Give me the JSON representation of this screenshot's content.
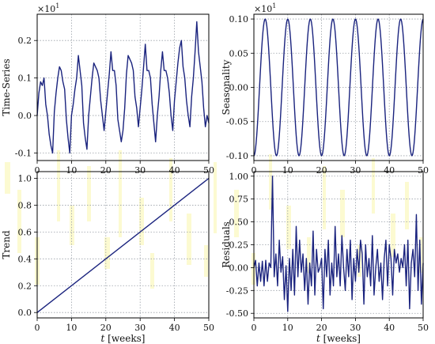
{
  "figure": {
    "series_color": "#1a237e",
    "grid_color": "#9aa0a8",
    "frame_color": "#000000",
    "decor_color": "#f5f07a"
  },
  "chart_data": [
    {
      "id": "timeseries",
      "type": "line",
      "ylabel": "Time-Series",
      "xlabel": "",
      "multiplier": "×10",
      "multiplier_exp": "1",
      "xlim": [
        0,
        50
      ],
      "ylim": [
        -0.12,
        0.27
      ],
      "xticks": [
        "0",
        "10",
        "20",
        "30",
        "40",
        "50"
      ],
      "yticks": [
        "-0.1",
        "0.0",
        "0.1",
        "0.2"
      ],
      "ytick_values": [
        -0.1,
        0.0,
        0.1,
        0.2
      ],
      "grid": true,
      "x": [
        0,
        0.5,
        1,
        1.5,
        2,
        2.5,
        3,
        3.5,
        4,
        4.5,
        5,
        5.5,
        6,
        6.5,
        7,
        7.5,
        8,
        8.5,
        9,
        9.5,
        10,
        10.5,
        11,
        11.5,
        12,
        12.5,
        13,
        13.5,
        14,
        14.5,
        15,
        15.5,
        16,
        16.5,
        17,
        17.5,
        18,
        18.5,
        19,
        19.5,
        20,
        20.5,
        21,
        21.5,
        22,
        22.5,
        23,
        23.5,
        24,
        24.5,
        25,
        25.5,
        26,
        26.5,
        27,
        27.5,
        28,
        28.5,
        29,
        29.5,
        30,
        30.5,
        31,
        31.5,
        32,
        32.5,
        33,
        33.5,
        34,
        34.5,
        35,
        35.5,
        36,
        36.5,
        37,
        37.5,
        38,
        38.5,
        39,
        39.5,
        40,
        40.5,
        41,
        41.5,
        42,
        42.5,
        43,
        43.5,
        44,
        44.5,
        45,
        45.5,
        46,
        46.5,
        47,
        47.5,
        48,
        48.5,
        49,
        49.5,
        50
      ],
      "values": [
        0.0,
        0.06,
        0.09,
        0.08,
        0.1,
        0.03,
        0.0,
        -0.05,
        -0.08,
        -0.1,
        0.01,
        0.06,
        0.1,
        0.13,
        0.12,
        0.09,
        0.07,
        -0.01,
        -0.06,
        -0.1,
        0.0,
        0.03,
        0.07,
        0.1,
        0.16,
        0.12,
        0.08,
        -0.02,
        -0.06,
        -0.09,
        0.0,
        0.05,
        0.1,
        0.14,
        0.13,
        0.12,
        0.1,
        0.04,
        0.0,
        -0.04,
        0.01,
        0.06,
        0.11,
        0.17,
        0.12,
        0.12,
        0.08,
        -0.01,
        -0.04,
        -0.07,
        -0.04,
        0.02,
        0.11,
        0.16,
        0.15,
        0.14,
        0.12,
        0.05,
        0.02,
        -0.03,
        0.02,
        0.07,
        0.13,
        0.19,
        0.12,
        0.12,
        0.1,
        0.03,
        -0.02,
        -0.07,
        0.0,
        0.05,
        0.12,
        0.17,
        0.12,
        0.12,
        0.1,
        0.06,
        0.0,
        -0.04,
        0.04,
        0.09,
        0.14,
        0.18,
        0.2,
        0.13,
        0.1,
        0.04,
        0.0,
        -0.03,
        0.05,
        0.1,
        0.17,
        0.25,
        0.17,
        0.13,
        0.09,
        0.02,
        -0.03,
        0.0,
        -0.02
      ]
    },
    {
      "id": "seasonality",
      "type": "line",
      "ylabel": "Seasonality",
      "xlabel": "",
      "multiplier": "×10",
      "multiplier_exp": "1",
      "xlim": [
        0,
        50
      ],
      "ylim": [
        -0.107,
        0.107
      ],
      "xticks": [
        "0",
        "10",
        "20",
        "30",
        "40",
        "50"
      ],
      "yticks": [
        "-0.10",
        "-0.05",
        "0.00",
        "0.05",
        "0.10"
      ],
      "ytick_values": [
        -0.1,
        -0.05,
        0.0,
        0.05,
        0.1
      ],
      "grid": true,
      "period_weeks": 6.67,
      "amplitude": 0.1,
      "x_start": 0,
      "x_end": 50
    },
    {
      "id": "trend",
      "type": "line",
      "ylabel": "Trend",
      "xlabel_italic": "t",
      "xlabel": " [weeks]",
      "xlim": [
        0,
        50
      ],
      "ylim": [
        -0.04,
        1.05
      ],
      "xticks": [
        "0",
        "10",
        "20",
        "30",
        "40",
        "50"
      ],
      "yticks": [
        "0.0",
        "0.2",
        "0.4",
        "0.6",
        "0.8",
        "1.0"
      ],
      "ytick_values": [
        0.0,
        0.2,
        0.4,
        0.6,
        0.8,
        1.0
      ],
      "grid": true,
      "x": [
        0,
        50
      ],
      "values": [
        0.0,
        1.0
      ]
    },
    {
      "id": "residuals",
      "type": "line",
      "ylabel": "Residuals",
      "xlabel_italic": "t",
      "xlabel": " [weeks]",
      "xlim": [
        0,
        50
      ],
      "ylim": [
        -0.55,
        1.05
      ],
      "xticks": [
        "0",
        "10",
        "20",
        "30",
        "40",
        "50"
      ],
      "yticks": [
        "-0.50",
        "-0.25",
        "0.00",
        "0.25",
        "0.50",
        "0.75",
        "1.00"
      ],
      "ytick_values": [
        -0.5,
        -0.25,
        0.0,
        0.25,
        0.5,
        0.75,
        1.0
      ],
      "grid": true,
      "x": [
        0,
        0.5,
        1,
        1.5,
        2,
        2.5,
        3,
        3.5,
        4,
        4.5,
        5,
        5.5,
        6,
        6.5,
        7,
        7.5,
        8,
        8.5,
        9,
        9.5,
        10,
        10.5,
        11,
        11.5,
        12,
        12.5,
        13,
        13.5,
        14,
        14.5,
        15,
        15.5,
        16,
        16.5,
        17,
        17.5,
        18,
        18.5,
        19,
        19.5,
        20,
        20.5,
        21,
        21.5,
        22,
        22.5,
        23,
        23.5,
        24,
        24.5,
        25,
        25.5,
        26,
        26.5,
        27,
        27.5,
        28,
        28.5,
        29,
        29.5,
        30,
        30.5,
        31,
        31.5,
        32,
        32.5,
        33,
        33.5,
        34,
        34.5,
        35,
        35.5,
        36,
        36.5,
        37,
        37.5,
        38,
        38.5,
        39,
        39.5,
        40,
        40.5,
        41,
        41.5,
        42,
        42.5,
        43,
        43.5,
        44,
        44.5,
        45,
        45.5,
        46,
        46.5,
        47,
        47.5,
        48,
        48.5,
        49,
        49.5,
        50
      ],
      "values": [
        0.0,
        0.08,
        -0.2,
        0.05,
        -0.15,
        0.07,
        -0.2,
        0.08,
        -0.15,
        0.05,
        0.0,
        1.0,
        -0.1,
        0.15,
        -0.2,
        0.3,
        -0.05,
        0.12,
        -0.35,
        0.02,
        -0.48,
        0.1,
        -0.25,
        0.2,
        -0.3,
        0.45,
        -0.1,
        0.3,
        -0.05,
        0.15,
        -0.25,
        0.1,
        -0.4,
        0.05,
        -0.2,
        0.4,
        -0.3,
        0.2,
        -0.05,
        0.0,
        0.1,
        -0.45,
        0.2,
        -0.1,
        0.3,
        -0.3,
        0.05,
        -0.2,
        0.45,
        -0.1,
        0.15,
        -0.2,
        0.35,
        0.0,
        -0.25,
        0.2,
        -0.1,
        0.3,
        -0.35,
        0.1,
        -0.15,
        0.2,
        -0.05,
        0.3,
        0.15,
        -0.4,
        0.25,
        -0.1,
        0.1,
        -0.2,
        0.35,
        -0.3,
        0.0,
        0.2,
        -0.15,
        0.05,
        -0.35,
        0.1,
        0.3,
        -0.2,
        0.25,
        0.1,
        -0.3,
        0.2,
        0.05,
        0.15,
        -0.05,
        0.1,
        0.0,
        0.25,
        -0.2,
        0.3,
        -0.45,
        0.05,
        0.2,
        -0.1,
        0.58,
        -0.25,
        0.3,
        -0.4,
        0.05
      ]
    }
  ]
}
